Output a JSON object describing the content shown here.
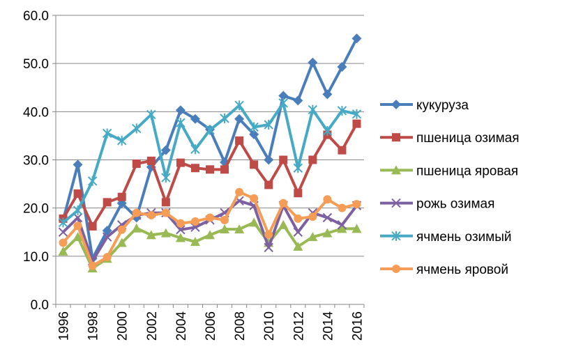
{
  "chart_data": {
    "type": "line",
    "categories": [
      "1996",
      null,
      "1998",
      null,
      "2000",
      null,
      "2002",
      null,
      "2004",
      null,
      "2006",
      null,
      "2008",
      null,
      "2010",
      null,
      "2012",
      null,
      "2014",
      null,
      "2016"
    ],
    "ylim": [
      0,
      60
    ],
    "yticks": [
      {
        "value": 0,
        "label": "0.0"
      },
      {
        "value": 10,
        "label": "10.0"
      },
      {
        "value": 20,
        "label": "20.0"
      },
      {
        "value": 30,
        "label": "30.0"
      },
      {
        "value": 40,
        "label": "40.0"
      },
      {
        "value": 50,
        "label": "50.0"
      },
      {
        "value": 60,
        "label": "60.0"
      }
    ],
    "grid": true,
    "legend": "right",
    "series": [
      {
        "name": "кукуруза",
        "color": "#4a7ebb",
        "marker": "diamond",
        "values": [
          17.5,
          29,
          9.5,
          15.3,
          21,
          18,
          28.5,
          32,
          40.3,
          38.5,
          36.3,
          29.5,
          38.5,
          35.3,
          30,
          43.3,
          42.3,
          50.2,
          43.6,
          49.3,
          55.2
        ]
      },
      {
        "name": "пшеница озимая",
        "color": "#be4b48",
        "marker": "square",
        "values": [
          17.8,
          23,
          16.2,
          21.2,
          22.3,
          29.2,
          29.8,
          21.2,
          29.4,
          28.3,
          28,
          28,
          34,
          29,
          24.8,
          30,
          23.1,
          30,
          35.2,
          32,
          37.5
        ]
      },
      {
        "name": "пшеница яровая",
        "color": "#98b954",
        "marker": "triangle",
        "values": [
          11,
          14,
          7.5,
          9.5,
          12.8,
          15.8,
          14.4,
          14.8,
          13.8,
          13,
          14.4,
          15.6,
          15.6,
          17,
          12.8,
          16.5,
          12,
          14,
          14.8,
          15.7,
          15.7
        ]
      },
      {
        "name": "рожь озимая",
        "color": "#7d60a0",
        "marker": "x",
        "values": [
          15,
          18,
          9,
          14,
          16.5,
          18.5,
          19,
          19,
          15.5,
          16,
          17.5,
          19,
          21.5,
          20.5,
          11.8,
          20.5,
          15,
          19,
          18,
          16.5,
          20.5
        ]
      },
      {
        "name": "ячмень озимый",
        "color": "#46aac5",
        "marker": "star",
        "values": [
          17,
          19.5,
          25.6,
          35.5,
          34,
          36.5,
          39.4,
          26.3,
          37.7,
          32.2,
          36.2,
          38.6,
          41.3,
          36.8,
          37.3,
          41.8,
          28.3,
          40.4,
          36,
          40.2,
          39.5
        ]
      },
      {
        "name": "ячмень яровой",
        "color": "#f59d56",
        "marker": "circle",
        "values": [
          12.8,
          16.3,
          8,
          9.8,
          15.5,
          19,
          18.5,
          19,
          16.8,
          17.2,
          18,
          17.5,
          23.3,
          22,
          14.5,
          21,
          17.8,
          18.2,
          21.8,
          20,
          20.8
        ]
      }
    ]
  }
}
